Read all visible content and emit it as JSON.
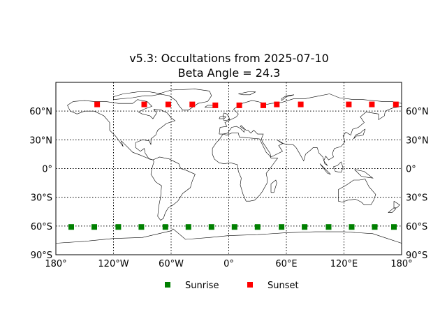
{
  "chart_data": {
    "type": "scatter",
    "title": "v5.3: Occultations from 2025-07-10",
    "subtitle": "Beta Angle = 24.3",
    "xlabel": "",
    "ylabel": "",
    "projection": "equirectangular world map (coastlines)",
    "xlim": [
      -180,
      180
    ],
    "ylim": [
      -90,
      90
    ],
    "x_ticks": [
      -180,
      -120,
      -60,
      0,
      60,
      120,
      180
    ],
    "x_tick_labels": [
      "180°",
      "120°W",
      "60°W",
      "0°",
      "60°E",
      "120°E",
      "180°"
    ],
    "y_ticks": [
      -90,
      -60,
      -30,
      0,
      30,
      60
    ],
    "y_tick_labels": [
      "90°S",
      "60°S",
      "30°S",
      "0°",
      "30°N",
      "60°N"
    ],
    "y_labels_both_sides": true,
    "grid": true,
    "legend_position": "below",
    "series": [
      {
        "name": "Sunrise",
        "color": "#008000",
        "marker": "square",
        "points": [
          {
            "lon": -164,
            "lat": -61
          },
          {
            "lon": -140,
            "lat": -61
          },
          {
            "lon": -115,
            "lat": -61
          },
          {
            "lon": -91,
            "lat": -61
          },
          {
            "lon": -66,
            "lat": -61
          },
          {
            "lon": -42,
            "lat": -61
          },
          {
            "lon": -18,
            "lat": -61
          },
          {
            "lon": 6,
            "lat": -61
          },
          {
            "lon": 30,
            "lat": -61
          },
          {
            "lon": 55,
            "lat": -61
          },
          {
            "lon": 79,
            "lat": -61
          },
          {
            "lon": 104,
            "lat": -61
          },
          {
            "lon": 128,
            "lat": -61
          },
          {
            "lon": 152,
            "lat": -61
          },
          {
            "lon": 172,
            "lat": -61
          }
        ]
      },
      {
        "name": "Sunset",
        "color": "#ff0000",
        "marker": "square",
        "points": [
          {
            "lon": -137,
            "lat": 67
          },
          {
            "lon": -88,
            "lat": 67
          },
          {
            "lon": -63,
            "lat": 67
          },
          {
            "lon": -38,
            "lat": 67
          },
          {
            "lon": -14,
            "lat": 66
          },
          {
            "lon": 11,
            "lat": 66
          },
          {
            "lon": 36,
            "lat": 66
          },
          {
            "lon": 50,
            "lat": 67
          },
          {
            "lon": 75,
            "lat": 67
          },
          {
            "lon": 125,
            "lat": 67
          },
          {
            "lon": 149,
            "lat": 67
          },
          {
            "lon": 174,
            "lat": 67
          }
        ]
      }
    ]
  }
}
